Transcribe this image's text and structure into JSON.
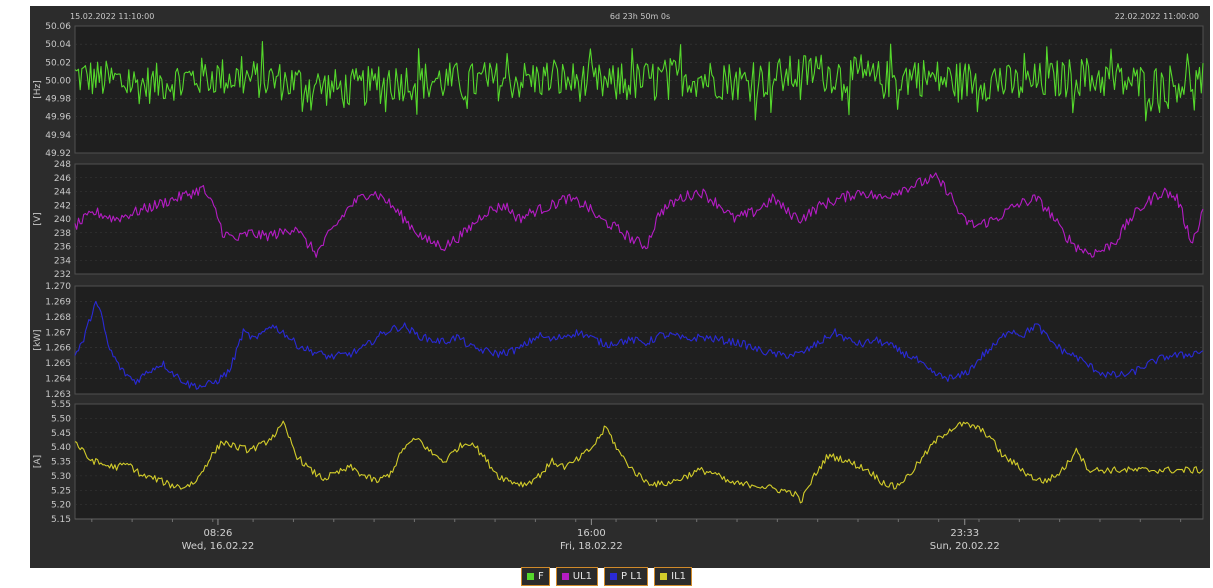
{
  "header": {
    "start": "15.02.2022 11:10:00",
    "duration": "6d 23h 50m 0s",
    "end": "22.02.2022 11:00:00"
  },
  "colors": {
    "frequency": "#55d82c",
    "voltage": "#b41cc4",
    "power": "#2a2ad6",
    "current": "#d2cc2a"
  },
  "chart_data": [
    {
      "type": "line",
      "ylabel": "[Hz]",
      "ylim": [
        49.92,
        50.06
      ],
      "yticks": [
        "50.06",
        "50.04",
        "50.02",
        "50.00",
        "49.98",
        "49.96",
        "49.94",
        "49.92"
      ],
      "series": [
        {
          "name": "F",
          "legend_color": "#55d82c"
        }
      ],
      "xlim_hours": [
        0,
        167.83
      ],
      "noise": 0.022,
      "points": [
        [
          0,
          50.005
        ],
        [
          10,
          49.995
        ],
        [
          20,
          50.005
        ],
        [
          30,
          50.0
        ],
        [
          40,
          49.99
        ],
        [
          50,
          50.0
        ],
        [
          60,
          49.998
        ],
        [
          70,
          50.002
        ],
        [
          80,
          49.995
        ],
        [
          90,
          50.005
        ],
        [
          100,
          49.998
        ],
        [
          110,
          50.01
        ],
        [
          120,
          50.0
        ],
        [
          125,
          50.005
        ],
        [
          130,
          50.0
        ],
        [
          135,
          50.0
        ],
        [
          140,
          49.995
        ],
        [
          150,
          50.005
        ],
        [
          160,
          49.995
        ],
        [
          167.83,
          50.0
        ]
      ]
    },
    {
      "type": "line",
      "ylabel": "[V]",
      "ylim": [
        232,
        248
      ],
      "yticks": [
        "248",
        "246",
        "244",
        "242",
        "240",
        "238",
        "236",
        "234",
        "232"
      ],
      "series": [
        {
          "name": "UL1",
          "legend_color": "#b41cc4"
        }
      ],
      "xlim_hours": [
        0,
        167.83
      ],
      "noise": 0.8,
      "points": [
        [
          0,
          239
        ],
        [
          3,
          241
        ],
        [
          6,
          240
        ],
        [
          9,
          241
        ],
        [
          12,
          242
        ],
        [
          15,
          243
        ],
        [
          18,
          244
        ],
        [
          19,
          244.5
        ],
        [
          21,
          241
        ],
        [
          22,
          238
        ],
        [
          24,
          237
        ],
        [
          26,
          238
        ],
        [
          28,
          237.5
        ],
        [
          31,
          238
        ],
        [
          33,
          239
        ],
        [
          34,
          237
        ],
        [
          36,
          235
        ],
        [
          38,
          238
        ],
        [
          41,
          242
        ],
        [
          44,
          244
        ],
        [
          46,
          243
        ],
        [
          49,
          240
        ],
        [
          52,
          237
        ],
        [
          55,
          236
        ],
        [
          58,
          238
        ],
        [
          61,
          241
        ],
        [
          64,
          242
        ],
        [
          66,
          240
        ],
        [
          68,
          241
        ],
        [
          71,
          242
        ],
        [
          73,
          243
        ],
        [
          76,
          242
        ],
        [
          78,
          240
        ],
        [
          80,
          239
        ],
        [
          83,
          237
        ],
        [
          85,
          236
        ],
        [
          87,
          241
        ],
        [
          90,
          243
        ],
        [
          93,
          244
        ],
        [
          96,
          242
        ],
        [
          98,
          240
        ],
        [
          101,
          241
        ],
        [
          104,
          243
        ],
        [
          106,
          241
        ],
        [
          108,
          240
        ],
        [
          111,
          242
        ],
        [
          114,
          243
        ],
        [
          117,
          244
        ],
        [
          120,
          243
        ],
        [
          122,
          244
        ],
        [
          125,
          245
        ],
        [
          128,
          246
        ],
        [
          130,
          244
        ],
        [
          132,
          240
        ],
        [
          134,
          239
        ],
        [
          137,
          240
        ],
        [
          140,
          242
        ],
        [
          143,
          243
        ],
        [
          145,
          241
        ],
        [
          147,
          238
        ],
        [
          149,
          236
        ],
        [
          151,
          235
        ],
        [
          153,
          235.5
        ],
        [
          155,
          237
        ],
        [
          157,
          240
        ],
        [
          159,
          242
        ],
        [
          161,
          243.5
        ],
        [
          162,
          244
        ],
        [
          164,
          243
        ],
        [
          165,
          240
        ],
        [
          166,
          237
        ],
        [
          167,
          238
        ],
        [
          167.83,
          242
        ]
      ]
    },
    {
      "type": "line",
      "ylabel": "[kW]",
      "ylim": [
        1.263,
        1.27
      ],
      "yticks": [
        "1.270",
        "1.269",
        "1.268",
        "1.267",
        "1.266",
        "1.265",
        "1.264",
        "1.263"
      ],
      "series": [
        {
          "name": "P L1",
          "legend_color": "#2a2ad6"
        }
      ],
      "xlim_hours": [
        0,
        167.83
      ],
      "noise": 0.00025,
      "points": [
        [
          0,
          1.2655
        ],
        [
          1,
          1.2662
        ],
        [
          2,
          1.2675
        ],
        [
          3,
          1.269
        ],
        [
          4,
          1.268
        ],
        [
          5,
          1.266
        ],
        [
          7,
          1.2645
        ],
        [
          9,
          1.2638
        ],
        [
          11,
          1.2645
        ],
        [
          13,
          1.265
        ],
        [
          15,
          1.2642
        ],
        [
          17,
          1.2636
        ],
        [
          19,
          1.2635
        ],
        [
          21,
          1.2638
        ],
        [
          23,
          1.2645
        ],
        [
          25,
          1.267
        ],
        [
          27,
          1.2665
        ],
        [
          29,
          1.2675
        ],
        [
          31,
          1.267
        ],
        [
          33,
          1.2662
        ],
        [
          35,
          1.2658
        ],
        [
          38,
          1.2654
        ],
        [
          41,
          1.2656
        ],
        [
          43,
          1.266
        ],
        [
          45,
          1.2667
        ],
        [
          47,
          1.2672
        ],
        [
          49,
          1.2674
        ],
        [
          51,
          1.2668
        ],
        [
          53,
          1.2665
        ],
        [
          55,
          1.2664
        ],
        [
          57,
          1.2667
        ],
        [
          59,
          1.266
        ],
        [
          61,
          1.2658
        ],
        [
          63,
          1.2656
        ],
        [
          66,
          1.2659
        ],
        [
          69,
          1.2668
        ],
        [
          71,
          1.2665
        ],
        [
          73,
          1.2668
        ],
        [
          75,
          1.267
        ],
        [
          77,
          1.2666
        ],
        [
          79,
          1.2662
        ],
        [
          81,
          1.2664
        ],
        [
          83,
          1.2665
        ],
        [
          85,
          1.2663
        ],
        [
          87,
          1.2668
        ],
        [
          89,
          1.2668
        ],
        [
          91,
          1.2665
        ],
        [
          93,
          1.2667
        ],
        [
          96,
          1.2665
        ],
        [
          99,
          1.2663
        ],
        [
          102,
          1.2658
        ],
        [
          105,
          1.2655
        ],
        [
          108,
          1.2656
        ],
        [
          111,
          1.2664
        ],
        [
          113,
          1.267
        ],
        [
          115,
          1.2665
        ],
        [
          117,
          1.2662
        ],
        [
          119,
          1.2665
        ],
        [
          121,
          1.2662
        ],
        [
          123,
          1.2657
        ],
        [
          125,
          1.2653
        ],
        [
          127,
          1.2645
        ],
        [
          129,
          1.2641
        ],
        [
          131,
          1.264
        ],
        [
          133,
          1.2645
        ],
        [
          135,
          1.2655
        ],
        [
          137,
          1.2662
        ],
        [
          139,
          1.2672
        ],
        [
          141,
          1.2668
        ],
        [
          143,
          1.2675
        ],
        [
          145,
          1.2665
        ],
        [
          147,
          1.2658
        ],
        [
          149,
          1.2654
        ],
        [
          151,
          1.2648
        ],
        [
          153,
          1.2643
        ],
        [
          155,
          1.2642
        ],
        [
          157,
          1.2643
        ],
        [
          159,
          1.2648
        ],
        [
          161,
          1.2652
        ],
        [
          163,
          1.2655
        ],
        [
          165,
          1.2655
        ],
        [
          167.83,
          1.2658
        ]
      ]
    },
    {
      "type": "line",
      "ylabel": "[A]",
      "ylim": [
        5.15,
        5.55
      ],
      "yticks": [
        "5.55",
        "5.50",
        "5.45",
        "5.40",
        "5.35",
        "5.30",
        "5.25",
        "5.20",
        "5.15"
      ],
      "series": [
        {
          "name": "IL1",
          "legend_color": "#d2cc2a"
        }
      ],
      "xlim_hours": [
        0,
        167.83
      ],
      "noise": 0.012,
      "points": [
        [
          0,
          5.42
        ],
        [
          2,
          5.36
        ],
        [
          4,
          5.34
        ],
        [
          6,
          5.33
        ],
        [
          8,
          5.34
        ],
        [
          10,
          5.3
        ],
        [
          12,
          5.29
        ],
        [
          14,
          5.27
        ],
        [
          16,
          5.26
        ],
        [
          18,
          5.28
        ],
        [
          20,
          5.36
        ],
        [
          22,
          5.42
        ],
        [
          24,
          5.4
        ],
        [
          26,
          5.39
        ],
        [
          28,
          5.41
        ],
        [
          30,
          5.45
        ],
        [
          31,
          5.48
        ],
        [
          33,
          5.37
        ],
        [
          35,
          5.32
        ],
        [
          37,
          5.29
        ],
        [
          39,
          5.31
        ],
        [
          41,
          5.33
        ],
        [
          43,
          5.3
        ],
        [
          45,
          5.28
        ],
        [
          47,
          5.31
        ],
        [
          49,
          5.4
        ],
        [
          51,
          5.43
        ],
        [
          53,
          5.38
        ],
        [
          55,
          5.35
        ],
        [
          57,
          5.4
        ],
        [
          59,
          5.42
        ],
        [
          61,
          5.36
        ],
        [
          63,
          5.3
        ],
        [
          65,
          5.28
        ],
        [
          67,
          5.27
        ],
        [
          69,
          5.3
        ],
        [
          71,
          5.35
        ],
        [
          73,
          5.33
        ],
        [
          75,
          5.36
        ],
        [
          77,
          5.4
        ],
        [
          79,
          5.47
        ],
        [
          81,
          5.38
        ],
        [
          83,
          5.32
        ],
        [
          85,
          5.28
        ],
        [
          87,
          5.27
        ],
        [
          89,
          5.28
        ],
        [
          91,
          5.3
        ],
        [
          93,
          5.32
        ],
        [
          95,
          5.31
        ],
        [
          97,
          5.28
        ],
        [
          99,
          5.27
        ],
        [
          101,
          5.27
        ],
        [
          103,
          5.26
        ],
        [
          105,
          5.25
        ],
        [
          107,
          5.24
        ],
        [
          108,
          5.21
        ],
        [
          110,
          5.3
        ],
        [
          112,
          5.37
        ],
        [
          114,
          5.36
        ],
        [
          116,
          5.34
        ],
        [
          118,
          5.32
        ],
        [
          120,
          5.28
        ],
        [
          122,
          5.26
        ],
        [
          124,
          5.3
        ],
        [
          126,
          5.36
        ],
        [
          128,
          5.42
        ],
        [
          130,
          5.46
        ],
        [
          132,
          5.48
        ],
        [
          134,
          5.47
        ],
        [
          136,
          5.44
        ],
        [
          138,
          5.37
        ],
        [
          140,
          5.34
        ],
        [
          142,
          5.3
        ],
        [
          144,
          5.28
        ],
        [
          146,
          5.3
        ],
        [
          148,
          5.35
        ],
        [
          149,
          5.4
        ],
        [
          150,
          5.35
        ],
        [
          151,
          5.32
        ]
      ]
    }
  ],
  "time_axis": {
    "ticks": [
      {
        "hour": 21.27,
        "time": "08:26",
        "date": "Wed, 16.02.22"
      },
      {
        "hour": 76.83,
        "time": "16:00",
        "date": "Fri, 18.02.22"
      },
      {
        "hour": 132.38,
        "time": "23:33",
        "date": "Sun, 20.02.22"
      }
    ]
  },
  "legend": [
    {
      "label": "F",
      "color": "#55d82c"
    },
    {
      "label": "UL1",
      "color": "#b41cc4"
    },
    {
      "label": "P L1",
      "color": "#2a2ad6"
    },
    {
      "label": "IL1",
      "color": "#d2cc2a"
    }
  ]
}
